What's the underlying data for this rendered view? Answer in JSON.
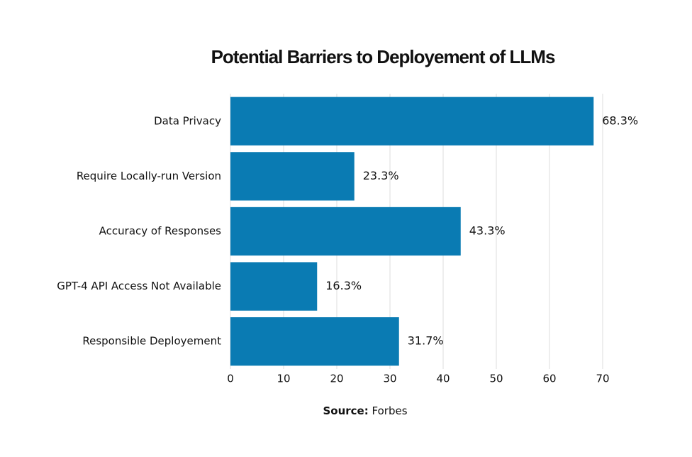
{
  "chart_data": {
    "type": "bar",
    "orientation": "horizontal",
    "title": "Potential Barriers to Deployement of LLMs",
    "categories": [
      "Data Privacy",
      "Require Locally-run Version",
      "Accuracy of Responses",
      "GPT-4 API Access Not Available",
      "Responsible Deployement"
    ],
    "values": [
      68.3,
      23.3,
      43.3,
      16.3,
      31.7
    ],
    "value_labels": [
      "68.3%",
      "23.3%",
      "43.3%",
      "16.3%",
      "31.7%"
    ],
    "color": "#0a7bb3",
    "xlim": [
      0,
      70
    ],
    "xticks": [
      0,
      10,
      20,
      30,
      40,
      50,
      60,
      70
    ],
    "grid": true,
    "source": {
      "label": "Source:",
      "text": "Forbes"
    }
  }
}
